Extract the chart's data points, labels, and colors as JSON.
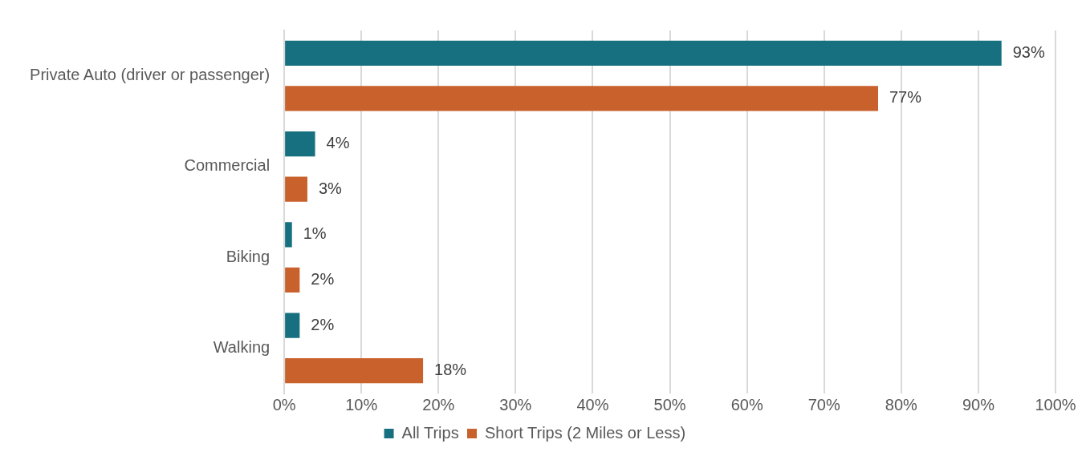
{
  "chart_data": {
    "type": "bar",
    "orientation": "horizontal",
    "categories": [
      "Private Auto (driver or passenger)",
      "Commercial",
      "Biking",
      "Walking"
    ],
    "series": [
      {
        "name": "All Trips",
        "color": "#17707f",
        "values": [
          93,
          4,
          1,
          2
        ]
      },
      {
        "name": "Short Trips (2 Miles or Less)",
        "color": "#c8612c",
        "values": [
          77,
          3,
          2,
          18
        ]
      }
    ],
    "xlim": [
      0,
      100
    ],
    "xticks": [
      {
        "value": 0,
        "label": "0%"
      },
      {
        "value": 10,
        "label": "10%"
      },
      {
        "value": 20,
        "label": "20%"
      },
      {
        "value": 30,
        "label": "30%"
      },
      {
        "value": 40,
        "label": "40%"
      },
      {
        "value": 50,
        "label": "50%"
      },
      {
        "value": 60,
        "label": "60%"
      },
      {
        "value": 70,
        "label": "70%"
      },
      {
        "value": 80,
        "label": "80%"
      },
      {
        "value": 90,
        "label": "90%"
      },
      {
        "value": 100,
        "label": "100%"
      }
    ],
    "value_labels": [
      [
        "93%",
        "4%",
        "1%",
        "2%"
      ],
      [
        "77%",
        "3%",
        "2%",
        "18%"
      ]
    ],
    "grid": "x",
    "legend": "bottom"
  }
}
